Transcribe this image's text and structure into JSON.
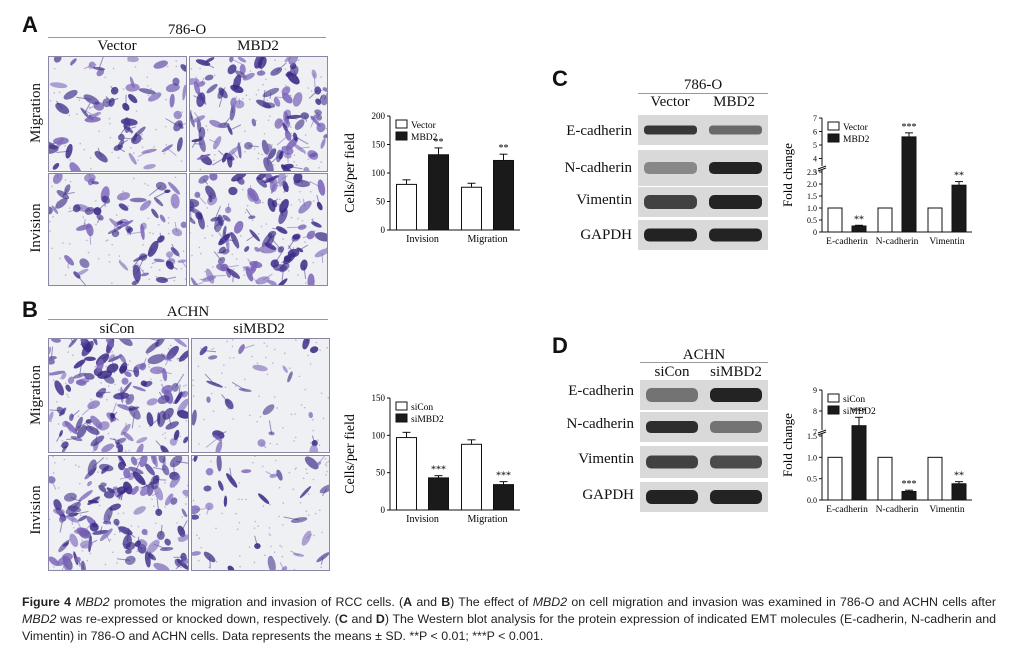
{
  "panels": {
    "A": {
      "letter": "A",
      "cell_line": "786-O",
      "columns": [
        "Vector",
        "MBD2"
      ],
      "rows": [
        "Migration",
        "Invision"
      ],
      "chart_data": {
        "type": "bar",
        "ylabel": "Cells/per field",
        "ylim": [
          0,
          200
        ],
        "yticks": [
          0,
          50,
          100,
          150,
          200
        ],
        "categories": [
          "Invision",
          "Migration"
        ],
        "series": [
          {
            "name": "Vector",
            "values": [
              80,
              75
            ],
            "errors": [
              8,
              7
            ],
            "fill": "#ffffff"
          },
          {
            "name": "MBD2",
            "values": [
              132,
              122
            ],
            "errors": [
              12,
              11
            ],
            "fill": "#1a1a1a"
          }
        ],
        "annotations": [
          {
            "category": 0,
            "series": 1,
            "text": "**"
          },
          {
            "category": 1,
            "series": 1,
            "text": "**"
          }
        ],
        "legend": "top-left"
      }
    },
    "B": {
      "letter": "B",
      "cell_line": "ACHN",
      "columns": [
        "siCon",
        "siMBD2"
      ],
      "rows": [
        "Migration",
        "Invision"
      ],
      "chart_data": {
        "type": "bar",
        "ylabel": "Cells/per field",
        "ylim": [
          0,
          150
        ],
        "yticks": [
          0,
          50,
          100,
          150
        ],
        "categories": [
          "Invision",
          "Migration"
        ],
        "series": [
          {
            "name": "siCon",
            "values": [
              97,
              88
            ],
            "errors": [
              7,
              6
            ],
            "fill": "#ffffff"
          },
          {
            "name": "siMBD2",
            "values": [
              43,
              34
            ],
            "errors": [
              3,
              4
            ],
            "fill": "#1a1a1a"
          }
        ],
        "annotations": [
          {
            "category": 0,
            "series": 1,
            "text": "***"
          },
          {
            "category": 1,
            "series": 1,
            "text": "***"
          }
        ],
        "legend": "top-left"
      }
    },
    "C": {
      "letter": "C",
      "cell_line": "786-O",
      "columns": [
        "Vector",
        "MBD2"
      ],
      "blots": [
        "E-cadherin",
        "N-cadherin",
        "Vimentin",
        "GAPDH"
      ],
      "chart_data": {
        "type": "bar",
        "ylabel": "Fold change",
        "ylim": [
          0,
          7
        ],
        "yticks": [
          "0",
          "0.5",
          "1.0",
          "1.5",
          "2.0",
          "2.5",
          "3",
          "4",
          "5",
          "6",
          "7"
        ],
        "axis_break": true,
        "categories": [
          "E-cadherin",
          "N-cadherin",
          "Vimentin"
        ],
        "series": [
          {
            "name": "Vector",
            "values": [
              1.0,
              1.0,
              1.0
            ],
            "errors": [
              0,
              0,
              0
            ],
            "fill": "#ffffff"
          },
          {
            "name": "MBD2",
            "values": [
              0.25,
              5.6,
              1.95
            ],
            "errors": [
              0.03,
              0.3,
              0.15
            ],
            "fill": "#1a1a1a"
          }
        ],
        "annotations": [
          {
            "category": 0,
            "series": 1,
            "text": "**"
          },
          {
            "category": 1,
            "series": 1,
            "text": "***"
          },
          {
            "category": 2,
            "series": 1,
            "text": "**"
          }
        ],
        "legend": "top-left"
      }
    },
    "D": {
      "letter": "D",
      "cell_line": "ACHN",
      "columns": [
        "siCon",
        "siMBD2"
      ],
      "blots": [
        "E-cadherin",
        "N-cadherin",
        "Vimentin",
        "GAPDH"
      ],
      "chart_data": {
        "type": "bar",
        "ylabel": "Fold change",
        "ylim": [
          0,
          9
        ],
        "yticks": [
          "0.0",
          "0.5",
          "1.0",
          "1.5",
          "7",
          "8",
          "9"
        ],
        "axis_break": true,
        "categories": [
          "E-cadherin",
          "N-cadherin",
          "Vimentin"
        ],
        "series": [
          {
            "name": "siCon",
            "values": [
              1.0,
              1.0,
              1.0
            ],
            "errors": [
              0,
              0,
              0
            ],
            "fill": "#ffffff"
          },
          {
            "name": "siMBD2",
            "values": [
              7.3,
              0.2,
              0.38
            ],
            "errors": [
              0.4,
              0.03,
              0.05
            ],
            "fill": "#1a1a1a"
          }
        ],
        "annotations": [
          {
            "category": 0,
            "series": 1,
            "text": "***"
          },
          {
            "category": 1,
            "series": 1,
            "text": "***"
          },
          {
            "category": 2,
            "series": 1,
            "text": "**"
          }
        ],
        "legend": "top-left"
      }
    }
  },
  "caption": {
    "fig": "Figure 4",
    "gene": "MBD2",
    "t1": " promotes the migration and invasion of RCC cells. (",
    "A": "A",
    "and1": " and ",
    "B": "B",
    "t2": ") The effect of ",
    "t3": " on cell migration and invasion was examined in 786-O and ACHN cells after ",
    "t4": " was re-expressed or knocked down, respectively. (",
    "C": "C",
    "and2": " and ",
    "D": "D",
    "t5": ") The Western blot analysis for the protein expression of indicated EMT molecules (E-cadherin, N-cadherin and Vimentin) in 786-O and ACHN cells. Data represents the means ± SD. **P < 0.01; ***P < 0.001."
  },
  "colors": {
    "stain_dark": "#3b2a86",
    "stain_mid": "#7a63b8",
    "bg_light": "#eef0f4",
    "band": "#1e1e1e"
  }
}
